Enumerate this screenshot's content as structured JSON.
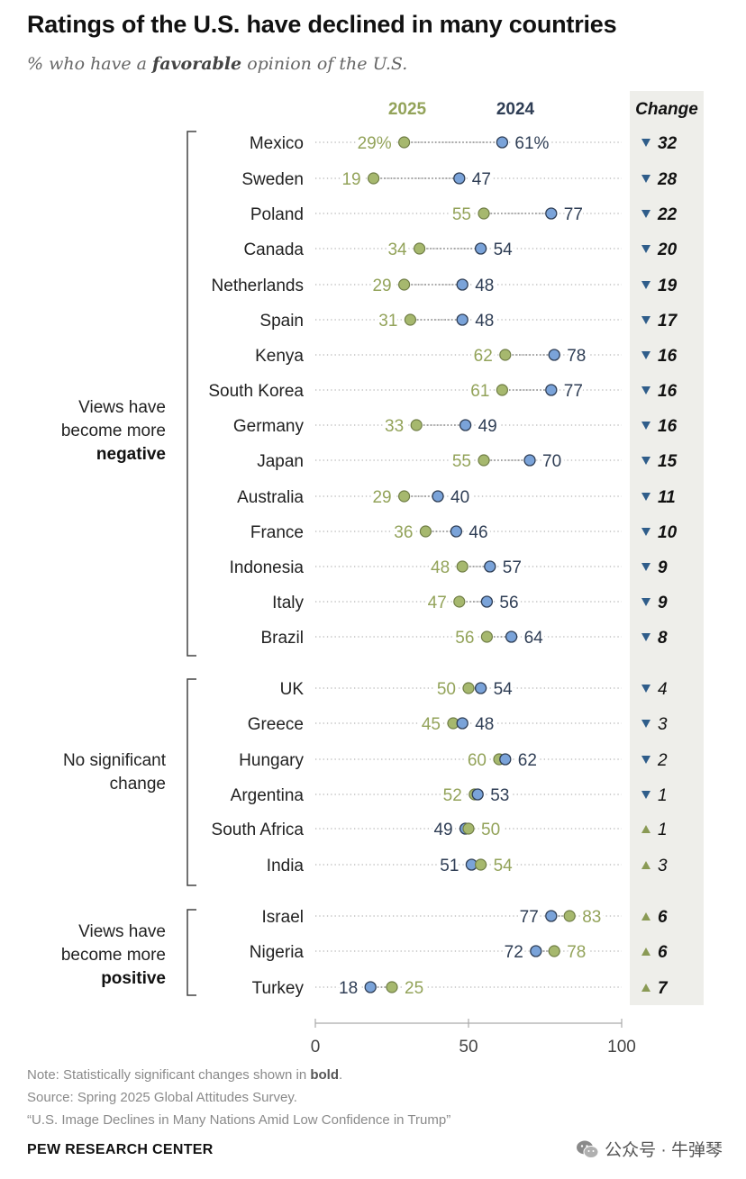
{
  "title": "Ratings of the U.S. have declined in many countries",
  "subtitle": {
    "prefix": "% who have a ",
    "emphasis": "favorable",
    "suffix": " opinion of the U.S."
  },
  "colors": {
    "year_2025": "#a6b86e",
    "year_2025_text": "#93a35a",
    "year_2024": "#7aa3d9",
    "year_2024_text": "#2f3e55",
    "change_column_bg": "#eeeeea",
    "dotted_line": "#b5b5b5",
    "bracket": "#444444"
  },
  "chart_data": {
    "type": "dot",
    "series": [
      {
        "name": "2025"
      },
      {
        "name": "2024"
      }
    ],
    "change_header": "Change",
    "xlim": [
      0,
      100
    ],
    "xticks": [
      0,
      50,
      100
    ],
    "groups": [
      {
        "label_lines": [
          "Views have",
          "become more"
        ],
        "label_bold": "negative"
      },
      {
        "label_lines": [
          "No significant",
          "change"
        ],
        "label_bold": ""
      },
      {
        "label_lines": [
          "Views have",
          "become more"
        ],
        "label_bold": "positive"
      }
    ],
    "rows": [
      {
        "country": "Mexico",
        "v2025": 29,
        "v2024": 61,
        "label2025": "29%",
        "label2024": "61%",
        "change": "32",
        "direction": "down",
        "significant": true,
        "group": 0
      },
      {
        "country": "Sweden",
        "v2025": 19,
        "v2024": 47,
        "label2025": "19",
        "label2024": "47",
        "change": "28",
        "direction": "down",
        "significant": true,
        "group": 0
      },
      {
        "country": "Poland",
        "v2025": 55,
        "v2024": 77,
        "label2025": "55",
        "label2024": "77",
        "change": "22",
        "direction": "down",
        "significant": true,
        "group": 0
      },
      {
        "country": "Canada",
        "v2025": 34,
        "v2024": 54,
        "label2025": "34",
        "label2024": "54",
        "change": "20",
        "direction": "down",
        "significant": true,
        "group": 0
      },
      {
        "country": "Netherlands",
        "v2025": 29,
        "v2024": 48,
        "label2025": "29",
        "label2024": "48",
        "change": "19",
        "direction": "down",
        "significant": true,
        "group": 0
      },
      {
        "country": "Spain",
        "v2025": 31,
        "v2024": 48,
        "label2025": "31",
        "label2024": "48",
        "change": "17",
        "direction": "down",
        "significant": true,
        "group": 0
      },
      {
        "country": "Kenya",
        "v2025": 62,
        "v2024": 78,
        "label2025": "62",
        "label2024": "78",
        "change": "16",
        "direction": "down",
        "significant": true,
        "group": 0
      },
      {
        "country": "South Korea",
        "v2025": 61,
        "v2024": 77,
        "label2025": "61",
        "label2024": "77",
        "change": "16",
        "direction": "down",
        "significant": true,
        "group": 0
      },
      {
        "country": "Germany",
        "v2025": 33,
        "v2024": 49,
        "label2025": "33",
        "label2024": "49",
        "change": "16",
        "direction": "down",
        "significant": true,
        "group": 0
      },
      {
        "country": "Japan",
        "v2025": 55,
        "v2024": 70,
        "label2025": "55",
        "label2024": "70",
        "change": "15",
        "direction": "down",
        "significant": true,
        "group": 0
      },
      {
        "country": "Australia",
        "v2025": 29,
        "v2024": 40,
        "label2025": "29",
        "label2024": "40",
        "change": "11",
        "direction": "down",
        "significant": true,
        "group": 0
      },
      {
        "country": "France",
        "v2025": 36,
        "v2024": 46,
        "label2025": "36",
        "label2024": "46",
        "change": "10",
        "direction": "down",
        "significant": true,
        "group": 0
      },
      {
        "country": "Indonesia",
        "v2025": 48,
        "v2024": 57,
        "label2025": "48",
        "label2024": "57",
        "change": "9",
        "direction": "down",
        "significant": true,
        "group": 0
      },
      {
        "country": "Italy",
        "v2025": 47,
        "v2024": 56,
        "label2025": "47",
        "label2024": "56",
        "change": "9",
        "direction": "down",
        "significant": true,
        "group": 0
      },
      {
        "country": "Brazil",
        "v2025": 56,
        "v2024": 64,
        "label2025": "56",
        "label2024": "64",
        "change": "8",
        "direction": "down",
        "significant": true,
        "group": 0
      },
      {
        "country": "UK",
        "v2025": 50,
        "v2024": 54,
        "label2025": "50",
        "label2024": "54",
        "change": "4",
        "direction": "down",
        "significant": false,
        "group": 1
      },
      {
        "country": "Greece",
        "v2025": 45,
        "v2024": 48,
        "label2025": "45",
        "label2024": "48",
        "change": "3",
        "direction": "down",
        "significant": false,
        "group": 1
      },
      {
        "country": "Hungary",
        "v2025": 60,
        "v2024": 62,
        "label2025": "60",
        "label2024": "62",
        "change": "2",
        "direction": "down",
        "significant": false,
        "group": 1
      },
      {
        "country": "Argentina",
        "v2025": 52,
        "v2024": 53,
        "label2025": "52",
        "label2024": "53",
        "change": "1",
        "direction": "down",
        "significant": false,
        "group": 1
      },
      {
        "country": "South Africa",
        "v2025": 50,
        "v2024": 49,
        "label2025": "50",
        "label2024": "49",
        "change": "1",
        "direction": "up",
        "significant": false,
        "group": 1
      },
      {
        "country": "India",
        "v2025": 54,
        "v2024": 51,
        "label2025": "54",
        "label2024": "51",
        "change": "3",
        "direction": "up",
        "significant": false,
        "group": 1
      },
      {
        "country": "Israel",
        "v2025": 83,
        "v2024": 77,
        "label2025": "83",
        "label2024": "77",
        "change": "6",
        "direction": "up",
        "significant": true,
        "group": 2
      },
      {
        "country": "Nigeria",
        "v2025": 78,
        "v2024": 72,
        "label2025": "78",
        "label2024": "72",
        "change": "6",
        "direction": "up",
        "significant": true,
        "group": 2
      },
      {
        "country": "Turkey",
        "v2025": 25,
        "v2024": 18,
        "label2025": "25",
        "label2024": "18",
        "change": "7",
        "direction": "up",
        "significant": true,
        "group": 2
      }
    ]
  },
  "footer": {
    "note_prefix": "Note: Statistically significant changes shown in ",
    "note_bold": "bold",
    "note_suffix": ".",
    "source": "Source: Spring 2025 Global Attitudes Survey.",
    "report": "“U.S. Image Declines in Many Nations Amid Low Confidence in Trump”",
    "organization": "PEW RESEARCH CENTER",
    "watermark": "公众号 · 牛弹琴"
  }
}
